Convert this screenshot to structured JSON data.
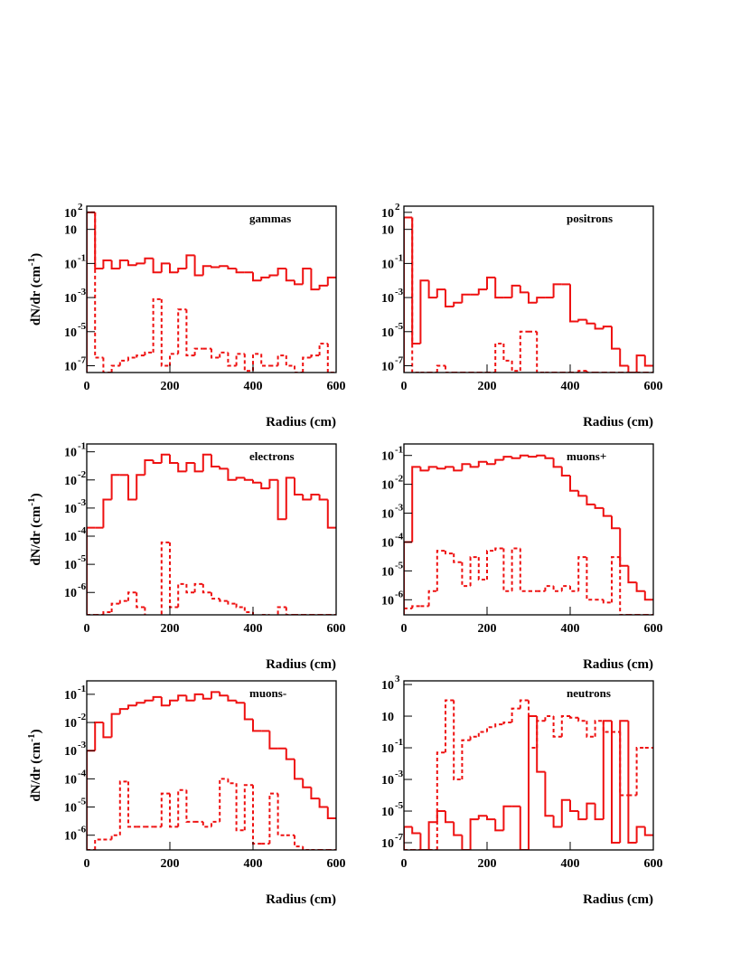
{
  "chart_data": [
    {
      "type": "histogram",
      "label": "gammas",
      "xlabel": "Radius (cm)",
      "ylabel": "dN/dr  (cm",
      "ylabel_exponent": "-1",
      "ylabel_end": ")",
      "bins": [
        0,
        20,
        40,
        60,
        80,
        100,
        120,
        140,
        160,
        180,
        200,
        220,
        240,
        260,
        280,
        300,
        320,
        340,
        360,
        380,
        400,
        420,
        440,
        460,
        480,
        500,
        520,
        540,
        560,
        580,
        600
      ],
      "xlim": [
        0,
        600
      ],
      "xticks": [
        0,
        200,
        400,
        600
      ],
      "ylim": [
        4e-08,
        230
      ],
      "log_y": true,
      "yticks": [
        {
          "value": 100,
          "label": "10",
          "exponent": "2"
        },
        10,
        {
          "value": 0.1,
          "label": "10",
          "exponent": "-1"
        },
        {
          "value": 0.001,
          "label": "10",
          "exponent": "-3"
        },
        {
          "value": 1e-05,
          "label": "10",
          "exponent": "-5"
        },
        {
          "value": 1e-07,
          "label": "10",
          "exponent": "-7"
        }
      ],
      "series": [
        {
          "color": "#ee1111",
          "line_style": "solid",
          "values": [
            100,
            0.05,
            0.15,
            0.05,
            0.15,
            0.08,
            0.1,
            0.2,
            0.03,
            0.1,
            0.03,
            0.05,
            0.3,
            0.02,
            0.07,
            0.06,
            0.07,
            0.05,
            0.03,
            0.03,
            0.01,
            0.015,
            0.02,
            0.05,
            0.01,
            0.006,
            0.05,
            0.003,
            0.005,
            0.015
          ]
        },
        {
          "color": "#ee1111",
          "line_style": "dashed",
          "values": [
            100,
            3e-07,
            0,
            1e-07,
            2e-07,
            3e-07,
            4e-07,
            6e-07,
            0.0008,
            1e-07,
            5e-07,
            0.0002,
            4e-07,
            1e-06,
            1e-06,
            3e-07,
            6e-07,
            1e-07,
            5e-07,
            5e-08,
            5e-07,
            1e-07,
            1e-07,
            4e-07,
            1e-07,
            0,
            3e-07,
            4e-07,
            2e-06,
            0
          ]
        }
      ]
    },
    {
      "type": "histogram",
      "label": "positrons",
      "xlabel": "Radius (cm)",
      "bins": [
        0,
        20,
        40,
        60,
        80,
        100,
        120,
        140,
        160,
        180,
        200,
        220,
        240,
        260,
        280,
        300,
        320,
        340,
        360,
        380,
        400,
        420,
        440,
        460,
        480,
        500,
        520,
        540,
        560,
        580,
        600
      ],
      "xlim": [
        0,
        600
      ],
      "xticks": [
        0,
        200,
        400,
        600
      ],
      "ylim": [
        4e-08,
        230
      ],
      "log_y": true,
      "yticks": [
        {
          "value": 100,
          "label": "10",
          "exponent": "2"
        },
        10,
        {
          "value": 0.1,
          "label": "10",
          "exponent": "-1"
        },
        {
          "value": 0.001,
          "label": "10",
          "exponent": "-3"
        },
        {
          "value": 1e-05,
          "label": "10",
          "exponent": "-5"
        },
        {
          "value": 1e-07,
          "label": "10",
          "exponent": "-7"
        }
      ],
      "series": [
        {
          "color": "#ee1111",
          "line_style": "solid",
          "values": [
            50,
            2e-06,
            0.01,
            0.001,
            0.003,
            0.0003,
            0.0005,
            0.0015,
            0.0015,
            0.003,
            0.015,
            0.001,
            0.001,
            0.005,
            0.002,
            0.0005,
            0.001,
            0.001,
            0.006,
            0.006,
            4e-05,
            5e-05,
            3e-05,
            1.5e-05,
            2e-05,
            1e-06,
            1e-07,
            0,
            4e-07,
            1e-07
          ]
        },
        {
          "color": "#ee1111",
          "line_style": "dashed",
          "values": [
            50,
            0,
            0,
            0,
            1e-07,
            0,
            0,
            0,
            0,
            0,
            0,
            2e-06,
            2e-07,
            5e-08,
            1e-05,
            1e-05,
            0,
            0,
            0,
            0,
            0,
            5e-08,
            0,
            0,
            0,
            0,
            0,
            0,
            0,
            0
          ]
        }
      ]
    },
    {
      "type": "histogram",
      "label": "electrons",
      "xlabel": "Radius (cm)",
      "ylabel": "dN/dr  (cm",
      "ylabel_exponent": "-1",
      "ylabel_end": ")",
      "bins": [
        0,
        20,
        40,
        60,
        80,
        100,
        120,
        140,
        160,
        180,
        200,
        220,
        240,
        260,
        280,
        300,
        320,
        340,
        360,
        380,
        400,
        420,
        440,
        460,
        480,
        500,
        520,
        540,
        560,
        580,
        600
      ],
      "xlim": [
        0,
        600
      ],
      "xticks": [
        0,
        200,
        400,
        600
      ],
      "ylim": [
        1.6e-07,
        0.19
      ],
      "log_y": true,
      "yticks": [
        {
          "value": 0.1,
          "label": "10",
          "exponent": "-1"
        },
        {
          "value": 0.01,
          "label": "10",
          "exponent": "-2"
        },
        {
          "value": 0.001,
          "label": "10",
          "exponent": "-3"
        },
        {
          "value": 0.0001,
          "label": "10",
          "exponent": "-4"
        },
        {
          "value": 1e-05,
          "label": "10",
          "exponent": "-5"
        },
        {
          "value": 1e-06,
          "label": "10",
          "exponent": "-6"
        }
      ],
      "series": [
        {
          "color": "#ee1111",
          "line_style": "solid",
          "values": [
            0.0002,
            0.0002,
            0.002,
            0.015,
            0.015,
            0.002,
            0.015,
            0.05,
            0.04,
            0.08,
            0.04,
            0.02,
            0.04,
            0.02,
            0.08,
            0.03,
            0.025,
            0.01,
            0.012,
            0.01,
            0.008,
            0.005,
            0.01,
            0.0004,
            0.012,
            0.003,
            0.002,
            0.003,
            0.002,
            0.0002
          ]
        },
        {
          "color": "#ee1111",
          "line_style": "dashed",
          "values": [
            0,
            0,
            2e-07,
            4e-07,
            5e-07,
            1e-06,
            3e-07,
            1e-07,
            1e-07,
            6e-05,
            3e-07,
            2e-06,
            1e-06,
            2e-06,
            1e-06,
            6e-07,
            5e-07,
            4e-07,
            3e-07,
            2e-07,
            1e-07,
            0,
            1e-07,
            3e-07,
            0,
            0,
            0,
            0,
            0,
            0
          ]
        }
      ]
    },
    {
      "type": "histogram",
      "label": "muons+",
      "xlabel": "Radius (cm)",
      "bins": [
        0,
        20,
        40,
        60,
        80,
        100,
        120,
        140,
        160,
        180,
        200,
        220,
        240,
        260,
        280,
        300,
        320,
        340,
        360,
        380,
        400,
        420,
        440,
        460,
        480,
        500,
        520,
        540,
        560,
        580,
        600
      ],
      "xlim": [
        0,
        600
      ],
      "xticks": [
        0,
        200,
        400,
        600
      ],
      "ylim": [
        3e-07,
        0.25
      ],
      "log_y": true,
      "yticks": [
        {
          "value": 0.1,
          "label": "10",
          "exponent": "-1"
        },
        {
          "value": 0.01,
          "label": "10",
          "exponent": "-2"
        },
        {
          "value": 0.001,
          "label": "10",
          "exponent": "-3"
        },
        {
          "value": 0.0001,
          "label": "10",
          "exponent": "-4"
        },
        {
          "value": 1e-05,
          "label": "10",
          "exponent": "-5"
        },
        {
          "value": 1e-06,
          "label": "10",
          "exponent": "-6"
        }
      ],
      "series": [
        {
          "color": "#ee1111",
          "line_style": "solid",
          "values": [
            0.0001,
            0.04,
            0.03,
            0.04,
            0.035,
            0.04,
            0.03,
            0.05,
            0.04,
            0.06,
            0.05,
            0.07,
            0.09,
            0.08,
            0.1,
            0.09,
            0.1,
            0.08,
            0.04,
            0.02,
            0.006,
            0.004,
            0.002,
            0.0015,
            0.0008,
            0.0003,
            1.5e-05,
            4e-06,
            2e-06,
            1e-06
          ]
        },
        {
          "color": "#ee1111",
          "line_style": "dashed",
          "values": [
            5e-07,
            6e-07,
            6e-07,
            2e-06,
            5e-05,
            4e-05,
            2e-05,
            3e-06,
            3e-05,
            5e-06,
            5e-05,
            6e-05,
            2e-06,
            6e-05,
            2e-06,
            2e-06,
            2e-06,
            3e-06,
            2e-06,
            3e-06,
            2e-06,
            3e-05,
            1e-06,
            1e-06,
            8e-07,
            3e-05,
            0,
            0,
            0,
            0
          ]
        }
      ]
    },
    {
      "type": "histogram",
      "label": "muons-",
      "xlabel": "Radius (cm)",
      "ylabel": "dN/dr  (cm",
      "ylabel_exponent": "-1",
      "ylabel_end": ")",
      "bins": [
        0,
        20,
        40,
        60,
        80,
        100,
        120,
        140,
        160,
        180,
        200,
        220,
        240,
        260,
        280,
        300,
        320,
        340,
        360,
        380,
        400,
        420,
        440,
        460,
        480,
        500,
        520,
        540,
        560,
        580,
        600
      ],
      "xlim": [
        0,
        600
      ],
      "xticks": [
        0,
        200,
        400,
        600
      ],
      "ylim": [
        3e-07,
        0.3
      ],
      "log_y": true,
      "yticks": [
        {
          "value": 0.1,
          "label": "10",
          "exponent": "-1"
        },
        {
          "value": 0.01,
          "label": "10",
          "exponent": "-2"
        },
        {
          "value": 0.001,
          "label": "10",
          "exponent": "-3"
        },
        {
          "value": 0.0001,
          "label": "10",
          "exponent": "-4"
        },
        {
          "value": 1e-05,
          "label": "10",
          "exponent": "-5"
        },
        {
          "value": 1e-06,
          "label": "10",
          "exponent": "-6"
        }
      ],
      "series": [
        {
          "color": "#ee1111",
          "line_style": "solid",
          "values": [
            0.001,
            0.01,
            0.003,
            0.02,
            0.03,
            0.04,
            0.05,
            0.06,
            0.08,
            0.04,
            0.06,
            0.09,
            0.06,
            0.1,
            0.07,
            0.12,
            0.09,
            0.06,
            0.05,
            0.013,
            0.005,
            0.005,
            0.0012,
            0.0012,
            0.0005,
            0.0001,
            5e-05,
            2e-05,
            1e-05,
            4e-06
          ]
        },
        {
          "color": "#ee1111",
          "line_style": "dashed",
          "values": [
            0,
            7e-07,
            7e-07,
            1e-06,
            8e-05,
            2e-06,
            2e-06,
            2e-06,
            2e-06,
            3e-05,
            2e-06,
            4e-05,
            3e-06,
            3e-06,
            2e-06,
            3e-06,
            0.0001,
            7e-05,
            1.5e-06,
            6e-05,
            5e-07,
            5e-07,
            3e-05,
            1e-06,
            1e-06,
            4e-07,
            0,
            0,
            0,
            0
          ]
        }
      ]
    },
    {
      "type": "histogram",
      "label": "neutrons",
      "xlabel": "Radius (cm)",
      "bins": [
        0,
        20,
        40,
        60,
        80,
        100,
        120,
        140,
        160,
        180,
        200,
        220,
        240,
        260,
        280,
        300,
        320,
        340,
        360,
        380,
        400,
        420,
        440,
        460,
        480,
        500,
        520,
        540,
        560,
        580,
        600
      ],
      "xlim": [
        0,
        600
      ],
      "xticks": [
        0,
        200,
        400,
        600
      ],
      "ylim": [
        3.5e-08,
        1700
      ],
      "log_y": true,
      "yticks": [
        {
          "value": 1000,
          "label": "10",
          "exponent": "3"
        },
        10,
        {
          "value": 0.1,
          "label": "10",
          "exponent": "-1"
        },
        {
          "value": 0.001,
          "label": "10",
          "exponent": "-3"
        },
        {
          "value": 1e-05,
          "label": "10",
          "exponent": "-5"
        },
        {
          "value": 1e-07,
          "label": "10",
          "exponent": "-7"
        }
      ],
      "series": [
        {
          "color": "#ee1111",
          "line_style": "solid",
          "values": [
            1e-06,
            4e-07,
            0,
            2e-06,
            1e-05,
            2e-06,
            3e-07,
            0,
            3e-06,
            5e-06,
            3e-06,
            6e-07,
            2e-05,
            2e-05,
            0,
            10,
            0.003,
            5e-06,
            1e-06,
            5e-05,
            1e-05,
            3e-06,
            3e-05,
            3e-06,
            5,
            1e-07,
            5,
            1e-07,
            1e-06,
            3e-07
          ]
        },
        {
          "color": "#ee1111",
          "line_style": "dashed",
          "values": [
            0,
            0,
            0,
            0,
            0.05,
            100,
            0.001,
            0.3,
            0.5,
            1,
            2,
            3,
            4,
            30,
            100,
            0.1,
            5,
            10,
            0.5,
            10,
            8,
            5,
            0.5,
            5,
            1,
            1,
            0.0001,
            0.0001,
            0.1,
            0.1
          ]
        }
      ]
    }
  ]
}
